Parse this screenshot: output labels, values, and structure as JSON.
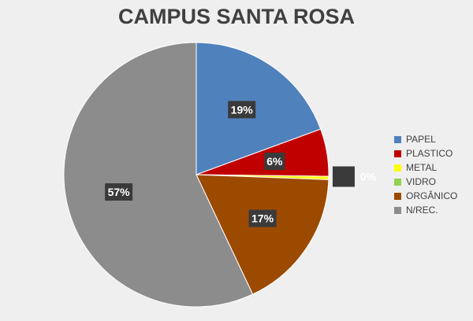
{
  "chart_data": {
    "type": "pie",
    "title": "CAMPUS SANTA ROSA",
    "slices": [
      {
        "name": "PAPEL",
        "value": 19.4,
        "label": "19%",
        "color": "#4f81bd"
      },
      {
        "name": "PLASTICO",
        "value": 5.8,
        "label": "6%",
        "color": "#c00000"
      },
      {
        "name": "METAL",
        "value": 0.4,
        "label": "0%",
        "color": "#ffff00"
      },
      {
        "name": "VIDRO",
        "value": 0.0,
        "label": "",
        "color": "#92d050"
      },
      {
        "name": "ORGÂNICO",
        "value": 17.4,
        "label": "17%",
        "color": "#9c4a00"
      },
      {
        "name": "N/REC.",
        "value": 57.0,
        "label": "57%",
        "color": "#8c8c8c"
      }
    ],
    "legend_position": "right"
  }
}
